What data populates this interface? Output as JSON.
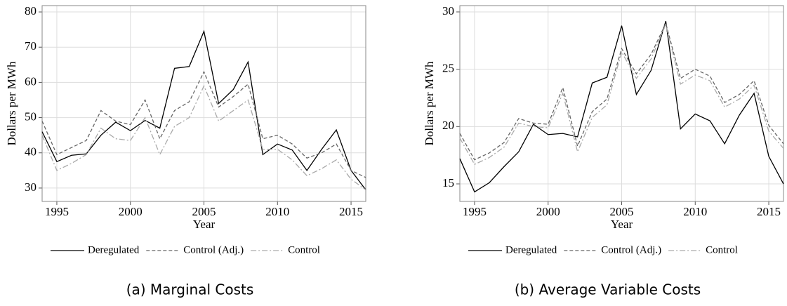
{
  "chart_data": [
    {
      "type": "line",
      "caption": "(a) Marginal Costs",
      "xlabel": "Year",
      "ylabel": "Dollars per MWh",
      "x": [
        1994,
        1995,
        1996,
        1997,
        1998,
        1999,
        2000,
        2001,
        2002,
        2003,
        2004,
        2005,
        2006,
        2007,
        2008,
        2009,
        2010,
        2011,
        2012,
        2013,
        2014,
        2015,
        2016
      ],
      "xlim": [
        1994,
        2016
      ],
      "xticks": [
        1995,
        2000,
        2005,
        2010,
        2015
      ],
      "ylim": [
        26.2,
        81.8
      ],
      "yticks": [
        30,
        40,
        50,
        60,
        70,
        80
      ],
      "grid": true,
      "legend": "bottom",
      "series": [
        {
          "name": "Deregulated",
          "color": "#000000",
          "style": "solid",
          "values": [
            46,
            37.5,
            39.3,
            39.7,
            45,
            48.7,
            46.3,
            49.2,
            47,
            64,
            64.5,
            74.5,
            54,
            58,
            65.8,
            39.5,
            42.5,
            40.8,
            35,
            41,
            46.5,
            35,
            29.5
          ]
        },
        {
          "name": "Control (Adj.)",
          "color": "#666666",
          "style": "dashed",
          "values": [
            49,
            39.5,
            41.5,
            43.5,
            52,
            49,
            48,
            55,
            44,
            52,
            54.5,
            63,
            53,
            56,
            59.5,
            44,
            45,
            42.5,
            38.5,
            40,
            42.5,
            35,
            33
          ]
        },
        {
          "name": "Control",
          "color": "#aaaaaa",
          "style": "dashdot",
          "values": [
            45,
            35,
            37,
            39.5,
            47,
            44,
            43.5,
            50,
            39.5,
            47.5,
            50,
            59,
            49,
            52,
            55,
            41,
            41,
            38,
            33.5,
            35.5,
            38,
            32.5,
            29.5
          ]
        }
      ]
    },
    {
      "type": "line",
      "caption": "(b) Average Variable Costs",
      "xlabel": "Year",
      "ylabel": "Dollars per MWh",
      "x": [
        1994,
        1995,
        1996,
        1997,
        1998,
        1999,
        2000,
        2001,
        2002,
        2003,
        2004,
        2005,
        2006,
        2007,
        2008,
        2009,
        2010,
        2011,
        2012,
        2013,
        2014,
        2015,
        2016
      ],
      "xlim": [
        1994,
        2016
      ],
      "xticks": [
        1995,
        2000,
        2005,
        2010,
        2015
      ],
      "ylim": [
        13.47,
        30.55
      ],
      "yticks": [
        15,
        20,
        25,
        30
      ],
      "grid": true,
      "legend": "bottom",
      "series": [
        {
          "name": "Deregulated",
          "color": "#000000",
          "style": "solid",
          "values": [
            17.2,
            14.3,
            15.1,
            16.5,
            17.8,
            20.2,
            19.3,
            19.4,
            19.1,
            23.8,
            24.3,
            28.8,
            22.8,
            24.9,
            29.2,
            19.8,
            21.1,
            20.5,
            18.5,
            21,
            22.9,
            17.4,
            15
          ]
        },
        {
          "name": "Control (Adj.)",
          "color": "#666666",
          "style": "dashed",
          "values": [
            19.4,
            17.1,
            17.7,
            18.6,
            20.7,
            20.3,
            20.2,
            23.4,
            18.3,
            21.3,
            22.4,
            26.8,
            24.6,
            26.3,
            29,
            24.2,
            25,
            24.4,
            22.1,
            22.8,
            24,
            20.1,
            18.5
          ]
        },
        {
          "name": "Control",
          "color": "#aaaaaa",
          "style": "dashdot",
          "values": [
            19,
            16.7,
            17.3,
            18.2,
            20.3,
            20,
            19.9,
            22.9,
            17.8,
            20.8,
            21.9,
            26.5,
            24.2,
            25.9,
            28.9,
            23.7,
            24.5,
            24,
            21.7,
            22.4,
            23.6,
            19.6,
            18.1
          ]
        }
      ]
    }
  ]
}
